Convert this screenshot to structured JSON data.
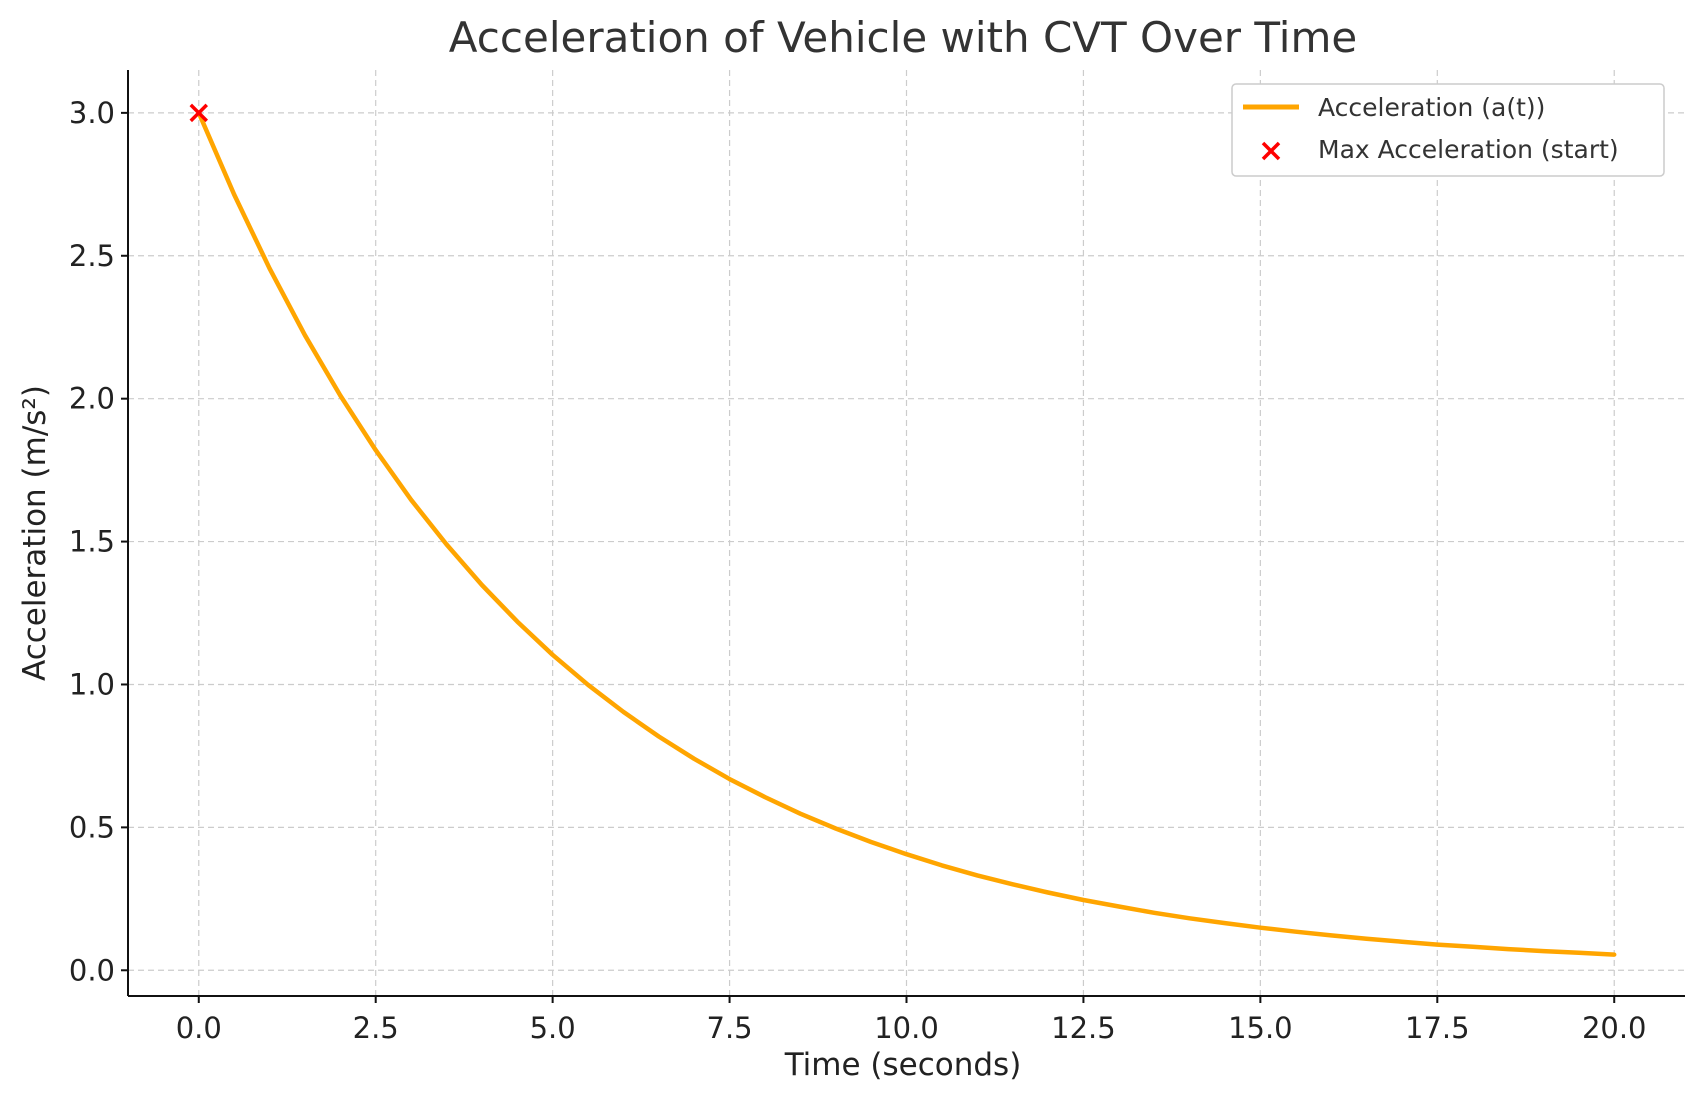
{
  "chart_data": {
    "type": "line",
    "title": "Acceleration of Vehicle with CVT Over Time",
    "xlabel": "Time (seconds)",
    "ylabel": "Acceleration (m/s²)",
    "xlim": [
      -1.0,
      21.0
    ],
    "ylim": [
      -0.09,
      3.15
    ],
    "xticks": [
      0.0,
      2.5,
      5.0,
      7.5,
      10.0,
      12.5,
      15.0,
      17.5,
      20.0
    ],
    "xtick_labels": [
      "0.0",
      "2.5",
      "5.0",
      "7.5",
      "10.0",
      "12.5",
      "15.0",
      "17.5",
      "20.0"
    ],
    "yticks": [
      0.0,
      0.5,
      1.0,
      1.5,
      2.0,
      2.5,
      3.0
    ],
    "ytick_labels": [
      "0.0",
      "0.5",
      "1.0",
      "1.5",
      "2.0",
      "2.5",
      "3.0"
    ],
    "grid": true,
    "legend_position": "top-right",
    "series": [
      {
        "name": "Acceleration (a(t))",
        "kind": "line",
        "color": "#FFA500",
        "x": [
          0,
          0.5,
          1,
          1.5,
          2,
          2.5,
          3,
          3.5,
          4,
          4.5,
          5,
          5.5,
          6,
          6.5,
          7,
          7.5,
          8,
          8.5,
          9,
          9.5,
          10,
          10.5,
          11,
          11.5,
          12,
          12.5,
          13,
          13.5,
          14,
          14.5,
          15,
          15.5,
          16,
          16.5,
          17,
          17.5,
          18,
          18.5,
          19,
          19.5,
          20
        ],
        "y": [
          3.0,
          2.714,
          2.456,
          2.222,
          2.011,
          1.82,
          1.646,
          1.49,
          1.348,
          1.22,
          1.104,
          0.999,
          0.904,
          0.818,
          0.74,
          0.669,
          0.606,
          0.548,
          0.496,
          0.449,
          0.406,
          0.367,
          0.332,
          0.301,
          0.272,
          0.246,
          0.223,
          0.201,
          0.182,
          0.165,
          0.149,
          0.135,
          0.122,
          0.11,
          0.1,
          0.09,
          0.082,
          0.074,
          0.067,
          0.061,
          0.055
        ]
      },
      {
        "name": "Max Acceleration (start)",
        "kind": "scatter",
        "marker": "x",
        "color": "#FF0000",
        "x": [
          0
        ],
        "y": [
          3.0
        ]
      }
    ]
  }
}
